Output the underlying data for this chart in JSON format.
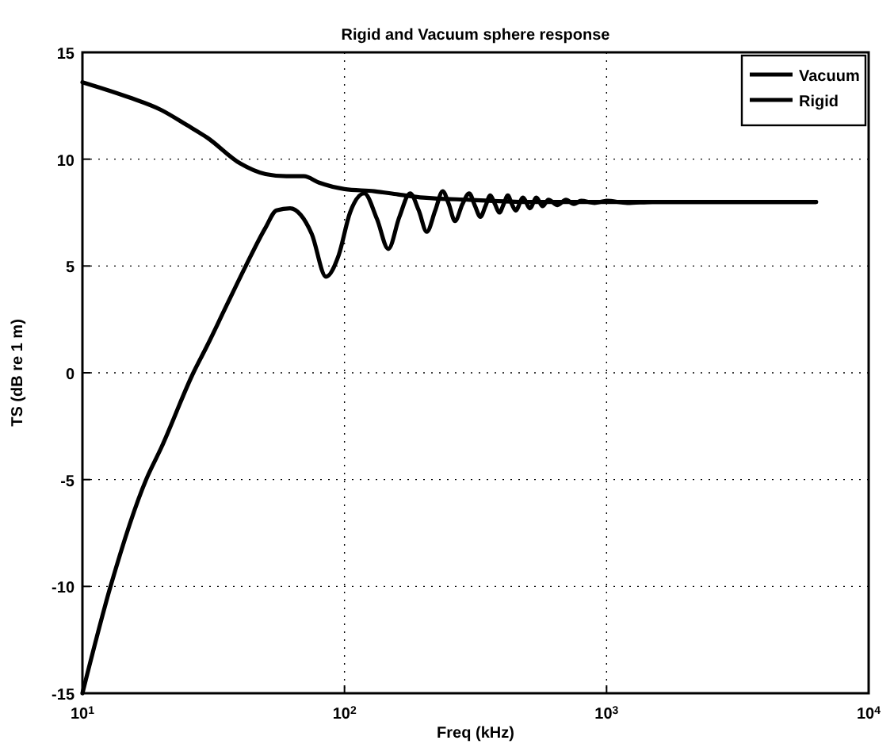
{
  "chart_data": {
    "type": "line",
    "title": "Rigid and Vacuum sphere response",
    "xlabel": "Freq (kHz)",
    "ylabel": "TS (dB re 1 m)",
    "log": "x",
    "grid": true,
    "legend": "top right",
    "line_style": "solid",
    "marker": "none",
    "xlim": [
      10,
      10000
    ],
    "xticks": [
      {
        "value": 10,
        "label": "10$^{1}$"
      },
      {
        "value": 100,
        "label": "10$^{2}$"
      },
      {
        "value": 1000,
        "label": "10$^{3}$"
      },
      {
        "value": 10000,
        "label": "10$^{4}$"
      }
    ],
    "ylim": [
      -15,
      15
    ],
    "yticks": [
      -15,
      -10,
      -5,
      0,
      5,
      10,
      15
    ],
    "series": [
      {
        "name": "Vacuum",
        "color": "#000000",
        "x": [
          10,
          15,
          20,
          25,
          30,
          40,
          50,
          60,
          70,
          80,
          100,
          130,
          160,
          200,
          300,
          500,
          1000,
          6300
        ],
        "values": [
          13.6,
          12.9,
          12.3,
          11.6,
          11.0,
          9.8,
          9.3,
          9.2,
          9.2,
          8.9,
          8.6,
          8.5,
          8.35,
          8.2,
          8.1,
          8.0,
          8.0,
          8.0
        ]
      },
      {
        "name": "Rigid",
        "color": "#000000",
        "x": [
          10,
          12.8,
          17.5,
          20,
          26.5,
          30,
          35,
          42,
          50,
          55,
          62,
          68,
          75,
          85,
          95,
          105,
          119,
          133,
          147,
          162,
          178,
          192,
          206,
          222,
          237,
          250,
          264,
          282,
          299,
          315,
          330,
          345,
          360,
          375,
          390,
          405,
          420,
          435,
          450,
          480,
          510,
          540,
          570,
          600,
          650,
          700,
          750,
          800,
          900,
          1000,
          1200,
          1500,
          2000,
          3000,
          6300
        ],
        "values": [
          -15,
          -10,
          -5,
          -3.5,
          0,
          1.3,
          3,
          5,
          6.8,
          7.6,
          7.7,
          7.4,
          6.5,
          4.5,
          5.5,
          7.5,
          8.4,
          7.2,
          5.8,
          7.3,
          8.4,
          7.6,
          6.6,
          7.6,
          8.5,
          7.9,
          7.1,
          7.9,
          8.4,
          7.8,
          7.3,
          7.8,
          8.3,
          7.9,
          7.5,
          7.9,
          8.3,
          7.9,
          7.6,
          8.2,
          7.7,
          8.2,
          7.8,
          8.1,
          7.85,
          8.1,
          7.9,
          8.05,
          7.95,
          8.05,
          7.95,
          8,
          8,
          8,
          8
        ]
      }
    ]
  }
}
